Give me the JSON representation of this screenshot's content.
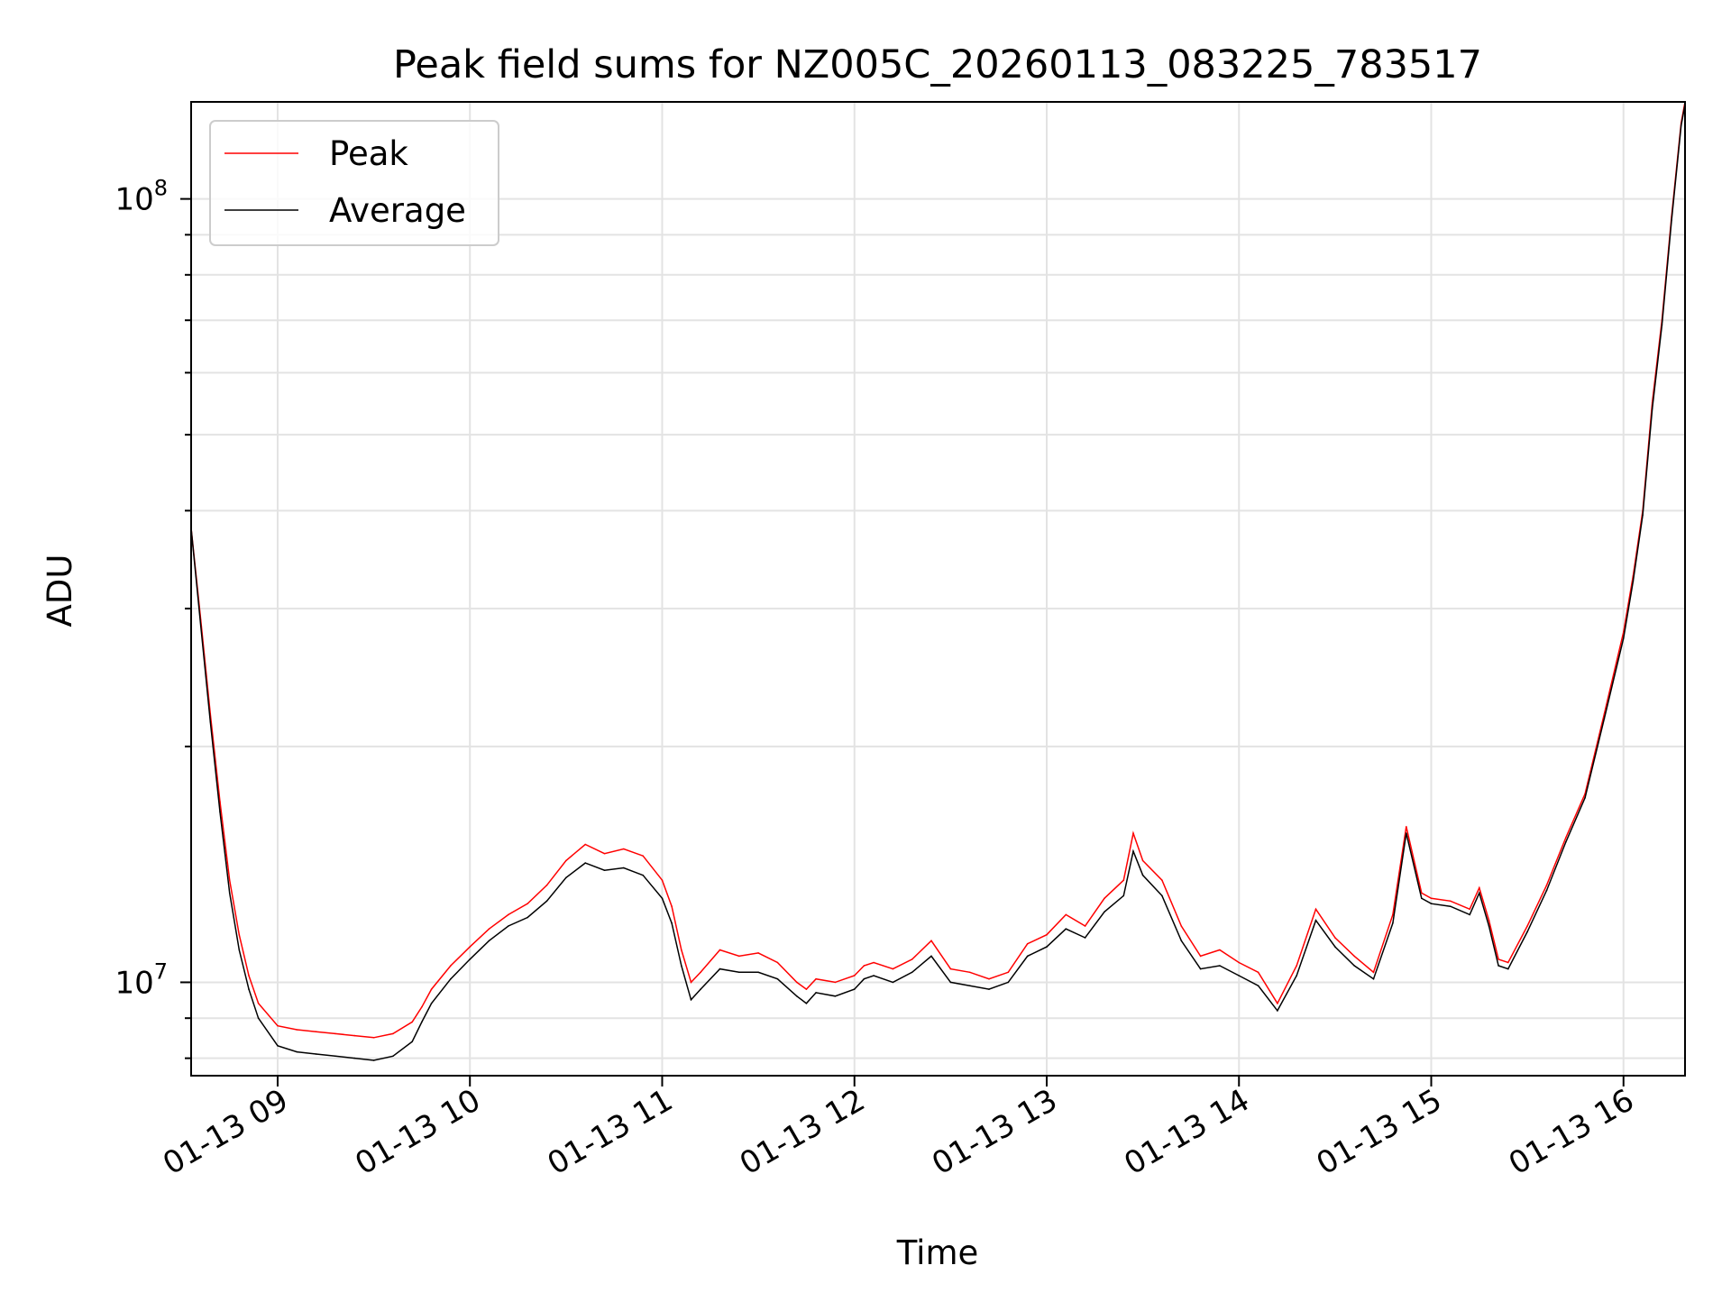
{
  "chart_data": {
    "type": "line",
    "title": "Peak field sums for NZ005C_20260113_083225_783517",
    "xlabel": "Time",
    "ylabel": "ADU",
    "yscale": "log",
    "grid": true,
    "legend_position": "top-left",
    "x_unit": "hours since 2026-01-13 00:00",
    "xlim": [
      8.55,
      16.32
    ],
    "ylim": [
      7600000,
      133000000
    ],
    "x_ticks": [
      {
        "x": 9,
        "label": "01-13 09"
      },
      {
        "x": 10,
        "label": "01-13 10"
      },
      {
        "x": 11,
        "label": "01-13 11"
      },
      {
        "x": 12,
        "label": "01-13 12"
      },
      {
        "x": 13,
        "label": "01-13 13"
      },
      {
        "x": 14,
        "label": "01-13 14"
      },
      {
        "x": 15,
        "label": "01-13 15"
      },
      {
        "x": 16,
        "label": "01-13 16"
      }
    ],
    "y_major_ticks": [
      {
        "value": 10000000,
        "base": "10",
        "exp": "7"
      },
      {
        "value": 100000000,
        "base": "10",
        "exp": "8"
      }
    ],
    "y_minor_ticks": [
      8000000,
      9000000,
      20000000,
      30000000,
      40000000,
      50000000,
      60000000,
      70000000,
      80000000,
      90000000
    ],
    "series": [
      {
        "name": "Peak",
        "color": "#ff0000",
        "x": [
          8.55,
          8.6,
          8.65,
          8.7,
          8.75,
          8.8,
          8.85,
          8.9,
          9.0,
          9.1,
          9.2,
          9.3,
          9.4,
          9.5,
          9.6,
          9.7,
          9.75,
          9.8,
          9.9,
          10.0,
          10.1,
          10.2,
          10.3,
          10.4,
          10.5,
          10.6,
          10.7,
          10.8,
          10.9,
          11.0,
          11.05,
          11.1,
          11.15,
          11.2,
          11.3,
          11.4,
          11.5,
          11.6,
          11.7,
          11.75,
          11.8,
          11.9,
          12.0,
          12.05,
          12.1,
          12.2,
          12.3,
          12.4,
          12.5,
          12.6,
          12.7,
          12.8,
          12.9,
          13.0,
          13.1,
          13.2,
          13.3,
          13.4,
          13.45,
          13.5,
          13.6,
          13.7,
          13.8,
          13.9,
          14.0,
          14.1,
          14.2,
          14.3,
          14.4,
          14.5,
          14.6,
          14.7,
          14.8,
          14.87,
          14.95,
          15.0,
          15.1,
          15.2,
          15.25,
          15.3,
          15.35,
          15.4,
          15.5,
          15.6,
          15.7,
          15.8,
          15.9,
          16.0,
          16.05,
          16.1,
          16.15,
          16.2,
          16.25,
          16.3,
          16.32
        ],
        "values": [
          38000000,
          29000000,
          22000000,
          17000000,
          13500000,
          11500000,
          10200000,
          9400000,
          8800000,
          8700000,
          8650000,
          8600000,
          8550000,
          8500000,
          8600000,
          8900000,
          9300000,
          9800000,
          10500000,
          11100000,
          11700000,
          12200000,
          12600000,
          13300000,
          14300000,
          15000000,
          14600000,
          14800000,
          14500000,
          13500000,
          12500000,
          11000000,
          10000000,
          10300000,
          11000000,
          10800000,
          10900000,
          10600000,
          10000000,
          9800000,
          10100000,
          10000000,
          10200000,
          10500000,
          10600000,
          10400000,
          10700000,
          11300000,
          10400000,
          10300000,
          10100000,
          10300000,
          11200000,
          11500000,
          12200000,
          11800000,
          12800000,
          13500000,
          15500000,
          14300000,
          13500000,
          11800000,
          10800000,
          11000000,
          10600000,
          10300000,
          9400000,
          10500000,
          12400000,
          11400000,
          10800000,
          10300000,
          12200000,
          15800000,
          13000000,
          12800000,
          12700000,
          12400000,
          13200000,
          12000000,
          10700000,
          10600000,
          11800000,
          13300000,
          15300000,
          17400000,
          22000000,
          28000000,
          33000000,
          40000000,
          55000000,
          70000000,
          95000000,
          125000000,
          133000000
        ]
      },
      {
        "name": "Average",
        "color": "#000000",
        "x": [
          8.55,
          8.6,
          8.65,
          8.7,
          8.75,
          8.8,
          8.85,
          8.9,
          9.0,
          9.1,
          9.2,
          9.3,
          9.4,
          9.5,
          9.6,
          9.7,
          9.75,
          9.8,
          9.9,
          10.0,
          10.1,
          10.2,
          10.3,
          10.4,
          10.5,
          10.6,
          10.7,
          10.8,
          10.9,
          11.0,
          11.05,
          11.1,
          11.15,
          11.2,
          11.3,
          11.4,
          11.5,
          11.6,
          11.7,
          11.75,
          11.8,
          11.9,
          12.0,
          12.05,
          12.1,
          12.2,
          12.3,
          12.4,
          12.5,
          12.6,
          12.7,
          12.8,
          12.9,
          13.0,
          13.1,
          13.2,
          13.3,
          13.4,
          13.45,
          13.5,
          13.6,
          13.7,
          13.8,
          13.9,
          14.0,
          14.1,
          14.2,
          14.3,
          14.4,
          14.5,
          14.6,
          14.7,
          14.8,
          14.87,
          14.95,
          15.0,
          15.1,
          15.2,
          15.25,
          15.3,
          15.35,
          15.4,
          15.5,
          15.6,
          15.7,
          15.8,
          15.9,
          16.0,
          16.05,
          16.1,
          16.15,
          16.2,
          16.25,
          16.3,
          16.32
        ],
        "values": [
          38000000,
          28500000,
          21500000,
          16500000,
          13000000,
          11000000,
          9800000,
          9000000,
          8300000,
          8150000,
          8100000,
          8050000,
          8000000,
          7950000,
          8050000,
          8400000,
          8900000,
          9400000,
          10100000,
          10700000,
          11300000,
          11800000,
          12100000,
          12700000,
          13600000,
          14200000,
          13900000,
          14000000,
          13700000,
          12800000,
          11900000,
          10500000,
          9500000,
          9800000,
          10400000,
          10300000,
          10300000,
          10100000,
          9600000,
          9400000,
          9700000,
          9600000,
          9800000,
          10100000,
          10200000,
          10000000,
          10300000,
          10800000,
          10000000,
          9900000,
          9800000,
          10000000,
          10800000,
          11100000,
          11700000,
          11400000,
          12300000,
          12900000,
          14700000,
          13700000,
          12900000,
          11300000,
          10400000,
          10500000,
          10200000,
          9900000,
          9200000,
          10200000,
          12000000,
          11100000,
          10500000,
          10100000,
          11900000,
          15500000,
          12800000,
          12600000,
          12500000,
          12200000,
          13000000,
          11800000,
          10500000,
          10400000,
          11600000,
          13100000,
          15100000,
          17200000,
          21700000,
          27500000,
          32500000,
          39500000,
          54000000,
          69000000,
          94000000,
          124000000,
          132000000
        ]
      }
    ]
  }
}
